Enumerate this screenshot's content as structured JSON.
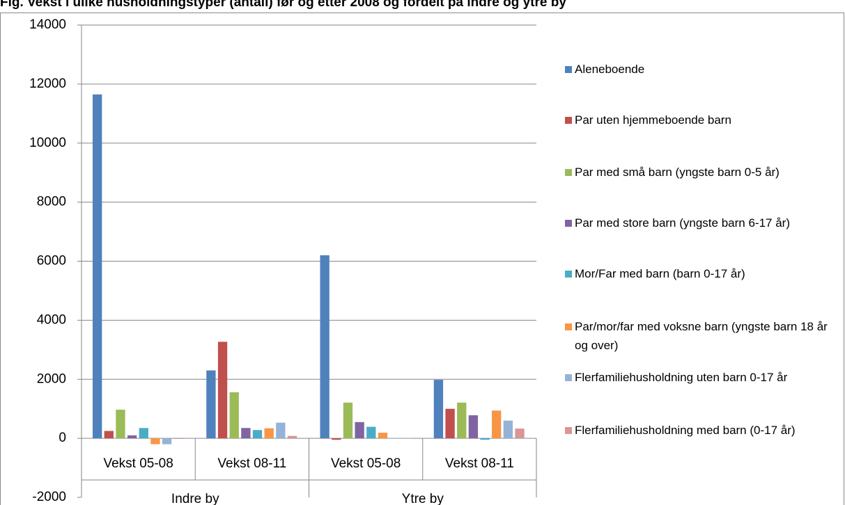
{
  "chart_data": {
    "type": "bar",
    "title": "Fig. Vekst i ulike husholdningstyper (antall) før og etter 2008 og fordelt på indre og ytre by",
    "categories": [
      "Vekst 05-08",
      "Vekst 08-11",
      "Vekst 05-08",
      "Vekst 08-11"
    ],
    "groups": [
      "Indre by",
      "Ytre by"
    ],
    "series": [
      {
        "name": "Aleneboende",
        "color": "#4F81BD",
        "values": [
          11650,
          2300,
          6200,
          1980
        ]
      },
      {
        "name": "Par uten hjemmeboende barn",
        "color": "#C0504D",
        "values": [
          250,
          3270,
          -50,
          1000
        ]
      },
      {
        "name": "Par med små barn (yngste barn 0-5 år)",
        "color": "#9BBB59",
        "values": [
          970,
          1560,
          1210,
          1210
        ]
      },
      {
        "name": "Par med store barn (yngste barn 6-17 år)",
        "color": "#8064A2",
        "values": [
          100,
          350,
          550,
          780
        ]
      },
      {
        "name": "Mor/Far med barn (barn 0-17 år)",
        "color": "#4BACC6",
        "values": [
          350,
          280,
          390,
          -50
        ]
      },
      {
        "name": "Par/mor/far med voksne barn (yngste barn 18 år og over)",
        "color": "#F79646",
        "values": [
          -200,
          340,
          190,
          940
        ]
      },
      {
        "name": "Flerfamiliehusholdning uten barn 0-17 år",
        "color": "#95B3D7",
        "values": [
          -200,
          530,
          -10,
          600
        ]
      },
      {
        "name": "Flerfamiliehusholdning med barn (0-17 år)",
        "color": "#D99694",
        "values": [
          -20,
          80,
          -10,
          330
        ]
      }
    ],
    "ylim": [
      -2000,
      14000
    ],
    "yticks": [
      -2000,
      0,
      2000,
      4000,
      6000,
      8000,
      10000,
      12000,
      14000
    ],
    "grid": true
  }
}
